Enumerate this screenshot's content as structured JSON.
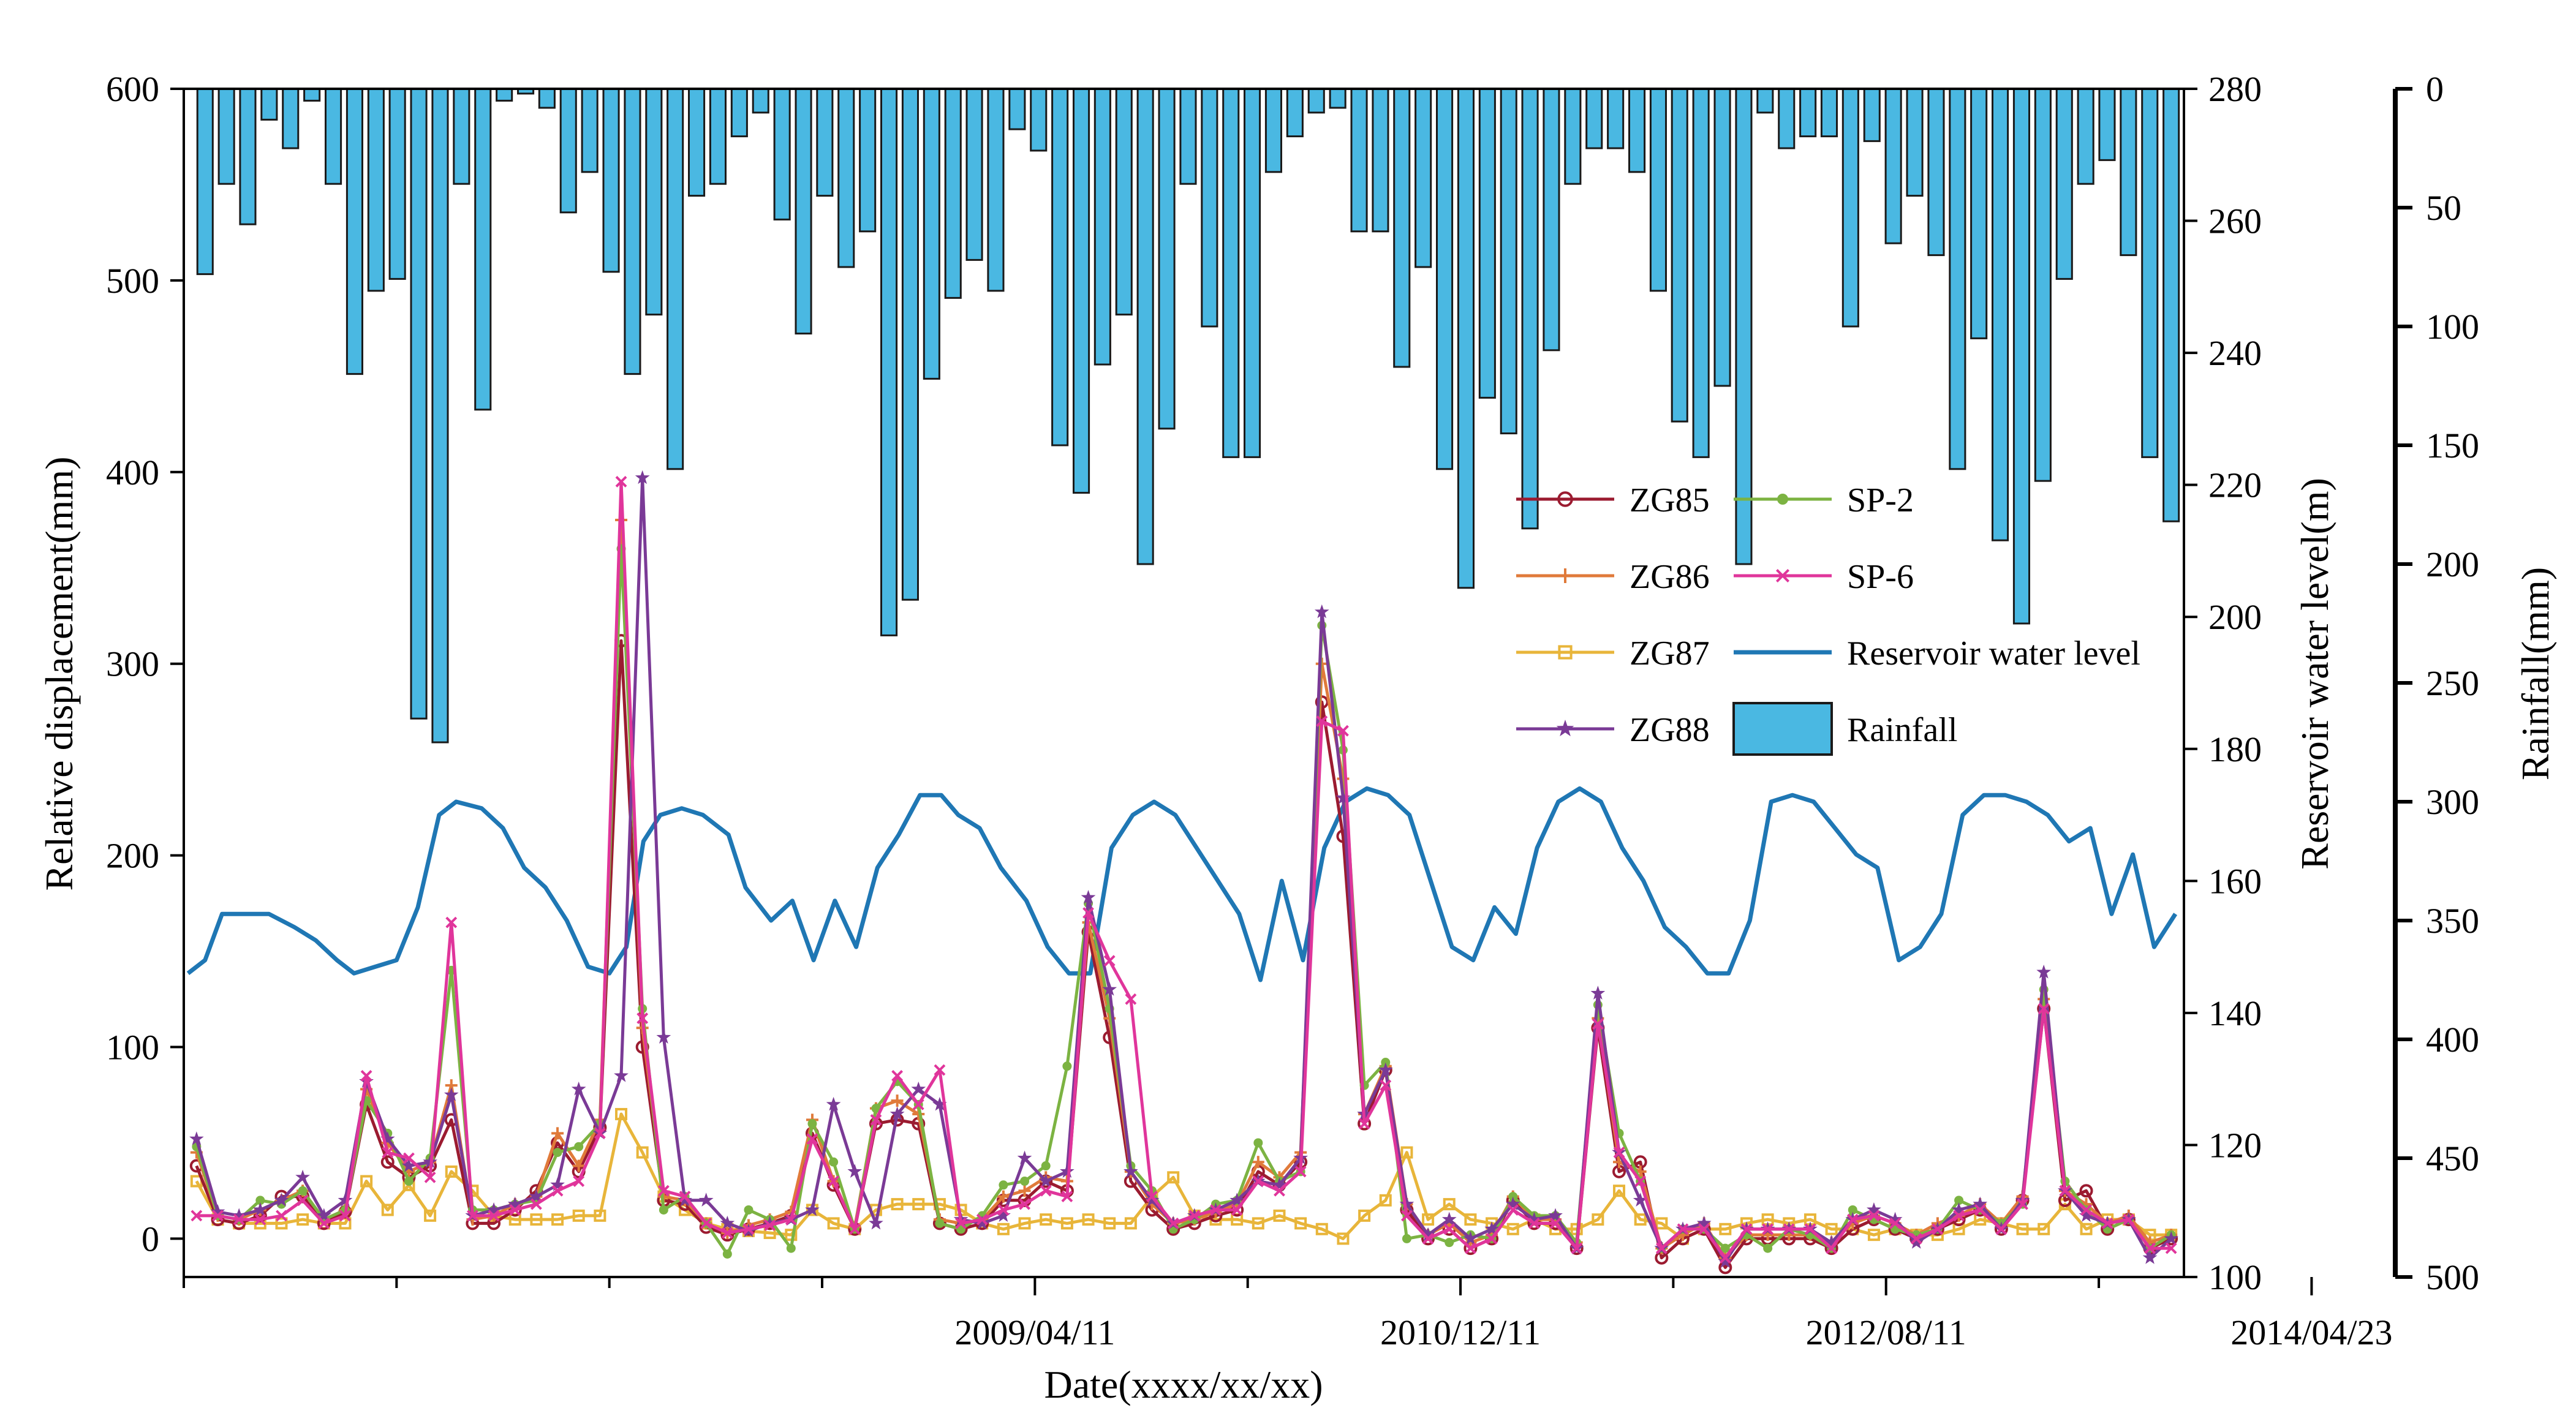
{
  "chart_data": {
    "type": "combo",
    "xlabel": "Date(xxxx/xx/xx)",
    "x_tick_labels": [
      "2009/04/11",
      "2010/12/11",
      "2012/08/11",
      "2014/04/23"
    ],
    "x_tick_positions": [
      1.0,
      2.0,
      3.0,
      4.0
    ],
    "x_range": [
      -1.0,
      3.7
    ],
    "left_axis": {
      "label": "Relative displacement(mm)",
      "ylim": [
        -20,
        600
      ],
      "ticks": [
        0,
        100,
        200,
        300,
        400,
        500,
        600
      ]
    },
    "right_axis": {
      "label": "Reservoir water level(m)",
      "ylim": [
        100,
        280
      ],
      "ticks": [
        100,
        120,
        140,
        160,
        180,
        200,
        220,
        240,
        260,
        280
      ]
    },
    "rain_axis": {
      "label": "Rainfall(mm)",
      "ylim": [
        0,
        500
      ],
      "inverted": true,
      "ticks": [
        0,
        50,
        100,
        150,
        200,
        250,
        300,
        350,
        400,
        450,
        500
      ]
    },
    "x_count": 94,
    "legend": [
      {
        "key": "ZG85",
        "label": "ZG85"
      },
      {
        "key": "SP-2",
        "label": "SP-2"
      },
      {
        "key": "ZG86",
        "label": "ZG86"
      },
      {
        "key": "SP-6",
        "label": "SP-6"
      },
      {
        "key": "ZG87",
        "label": "ZG87"
      },
      {
        "key": "reservoir",
        "label": "Reservoir water level"
      },
      {
        "key": "ZG88",
        "label": "ZG88"
      },
      {
        "key": "rainfall",
        "label": "Rainfall"
      }
    ],
    "rainfall": {
      "name": "Rainfall",
      "color": "#4ab8e2",
      "values": [
        78,
        40,
        57,
        13,
        25,
        5,
        40,
        120,
        85,
        80,
        265,
        275,
        40,
        135,
        5,
        2,
        8,
        52,
        35,
        77,
        120,
        95,
        160,
        45,
        40,
        20,
        10,
        55,
        103,
        45,
        75,
        60,
        230,
        215,
        122,
        88,
        72,
        85,
        17,
        26,
        150,
        170,
        116,
        95,
        200,
        143,
        40,
        100,
        155,
        155,
        35,
        20,
        10,
        8,
        60,
        60,
        117,
        75,
        160,
        210,
        130,
        145,
        185,
        110,
        40,
        25,
        25,
        35,
        85,
        140,
        155,
        125,
        200,
        10,
        25,
        20,
        20,
        100,
        22,
        65,
        45,
        70,
        160,
        105,
        190,
        225,
        165,
        80,
        40,
        30,
        70,
        155,
        182
      ],
      "first_x": -0.95,
      "last_x": 3.67
    },
    "reservoir": {
      "name": "Reservoir water level",
      "color": "#1f77b4",
      "x": [
        -0.99,
        -0.95,
        -0.91,
        -0.85,
        -0.8,
        -0.74,
        -0.69,
        -0.64,
        -0.6,
        -0.55,
        -0.5,
        -0.45,
        -0.4,
        -0.36,
        -0.3,
        -0.25,
        -0.2,
        -0.15,
        -0.1,
        -0.05,
        0.0,
        0.04,
        0.08,
        0.12,
        0.17,
        0.22,
        0.28,
        0.32,
        0.38,
        0.43,
        0.48,
        0.53,
        0.58,
        0.63,
        0.68,
        0.73,
        0.78,
        0.82,
        0.87,
        0.92,
        0.98,
        1.03,
        1.08,
        1.13,
        1.18,
        1.23,
        1.28,
        1.33,
        1.38,
        1.43,
        1.48,
        1.53,
        1.58,
        1.63,
        1.68,
        1.73,
        1.78,
        1.83,
        1.88,
        1.93,
        1.98,
        2.03,
        2.08,
        2.13,
        2.18,
        2.23,
        2.28,
        2.33,
        2.38,
        2.43,
        2.48,
        2.53,
        2.58,
        2.63,
        2.68,
        2.73,
        2.78,
        2.83,
        2.88,
        2.93,
        2.98,
        3.03,
        3.08,
        3.13,
        3.18,
        3.23,
        3.28,
        3.33,
        3.38,
        3.43,
        3.48,
        3.53,
        3.58,
        3.63,
        3.68
      ],
      "values": [
        146,
        148,
        155,
        155,
        155,
        153,
        151,
        148,
        146,
        147,
        148,
        156,
        170,
        172,
        171,
        168,
        162,
        159,
        154,
        147,
        146,
        150,
        166,
        170,
        171,
        170,
        167,
        159,
        154,
        157,
        148,
        157,
        150,
        162,
        167,
        173,
        173,
        170,
        168,
        162,
        157,
        150,
        146,
        146,
        165,
        170,
        172,
        170,
        165,
        160,
        155,
        145,
        160,
        148,
        165,
        172,
        174,
        173,
        170,
        160,
        150,
        148,
        156,
        152,
        165,
        172,
        174,
        172,
        165,
        160,
        153,
        150,
        146,
        146,
        154,
        172,
        173,
        172,
        168,
        164,
        162,
        148,
        150,
        155,
        170,
        173,
        173,
        172,
        170,
        166,
        168,
        155,
        164,
        150,
        155
      ]
    },
    "series": [
      {
        "name": "ZG85",
        "color": "#9b1b30",
        "marker": "circle",
        "values": [
          38,
          10,
          8,
          12,
          22,
          22,
          8,
          14,
          70,
          40,
          32,
          38,
          62,
          8,
          8,
          15,
          25,
          50,
          35,
          58,
          312,
          100,
          20,
          18,
          6,
          2,
          5,
          8,
          12,
          55,
          28,
          5,
          60,
          62,
          60,
          8,
          5,
          8,
          20,
          20,
          30,
          25,
          160,
          105,
          30,
          15,
          5,
          8,
          12,
          15,
          35,
          28,
          40,
          280,
          210,
          60,
          88,
          15,
          0,
          5,
          -5,
          0,
          20,
          8,
          8,
          -5,
          110,
          35,
          40,
          -10,
          0,
          5,
          -15,
          0,
          0,
          0,
          0,
          -5,
          5,
          10,
          5,
          0,
          5,
          10,
          15,
          5,
          20,
          120,
          20,
          25,
          5,
          10,
          -5,
          0
        ]
      },
      {
        "name": "ZG86",
        "color": "#e07a3a",
        "marker": "plus",
        "values": [
          45,
          12,
          10,
          15,
          20,
          25,
          10,
          15,
          78,
          50,
          35,
          40,
          80,
          10,
          12,
          18,
          22,
          55,
          38,
          62,
          375,
          110,
          22,
          20,
          8,
          3,
          7,
          10,
          14,
          62,
          30,
          6,
          68,
          72,
          65,
          10,
          8,
          10,
          22,
          25,
          32,
          30,
          165,
          115,
          35,
          18,
          8,
          10,
          14,
          18,
          40,
          32,
          45,
          300,
          240,
          65,
          90,
          18,
          2,
          8,
          -2,
          2,
          22,
          10,
          10,
          -2,
          115,
          40,
          35,
          -5,
          2,
          8,
          -10,
          2,
          2,
          2,
          2,
          -2,
          8,
          12,
          8,
          2,
          8,
          12,
          18,
          8,
          22,
          125,
          25,
          18,
          8,
          12,
          -2,
          2
        ]
      },
      {
        "name": "ZG87",
        "color": "#e8b53a",
        "marker": "square",
        "values": [
          30,
          10,
          8,
          8,
          8,
          10,
          8,
          8,
          30,
          15,
          28,
          12,
          35,
          25,
          12,
          10,
          10,
          10,
          12,
          12,
          65,
          45,
          22,
          15,
          8,
          5,
          4,
          3,
          2,
          15,
          8,
          5,
          15,
          18,
          18,
          18,
          15,
          8,
          5,
          8,
          10,
          8,
          10,
          8,
          8,
          22,
          32,
          12,
          10,
          10,
          8,
          12,
          8,
          5,
          0,
          12,
          20,
          45,
          10,
          18,
          10,
          8,
          5,
          10,
          5,
          5,
          10,
          25,
          10,
          8,
          0,
          5,
          5,
          8,
          10,
          8,
          10,
          5,
          5,
          2,
          5,
          2,
          2,
          5,
          10,
          8,
          5,
          5,
          18,
          5,
          10,
          10,
          2,
          2
        ]
      },
      {
        "name": "ZG88",
        "color": "#7a3a96",
        "marker": "star",
        "values": [
          52,
          14,
          12,
          15,
          20,
          32,
          12,
          20,
          82,
          52,
          38,
          40,
          75,
          12,
          15,
          18,
          22,
          28,
          78,
          55,
          85,
          397,
          105,
          20,
          20,
          8,
          4,
          8,
          10,
          15,
          70,
          35,
          8,
          65,
          78,
          70,
          10,
          8,
          12,
          42,
          30,
          35,
          178,
          130,
          35,
          20,
          8,
          12,
          15,
          20,
          30,
          28,
          42,
          327,
          230,
          65,
          88,
          18,
          2,
          10,
          0,
          5,
          18,
          10,
          12,
          -5,
          128,
          45,
          20,
          -5,
          5,
          8,
          -12,
          5,
          5,
          5,
          5,
          -2,
          10,
          15,
          10,
          -2,
          5,
          15,
          18,
          5,
          20,
          139,
          25,
          12,
          8,
          10,
          -10,
          0
        ]
      },
      {
        "name": "SP-2",
        "color": "#7cb342",
        "marker": "dot",
        "values": [
          48,
          12,
          10,
          20,
          18,
          25,
          10,
          15,
          72,
          55,
          30,
          42,
          140,
          15,
          15,
          18,
          20,
          45,
          48,
          60,
          360,
          120,
          15,
          22,
          8,
          -8,
          15,
          10,
          -5,
          60,
          40,
          5,
          68,
          82,
          70,
          8,
          5,
          12,
          28,
          30,
          38,
          90,
          175,
          120,
          38,
          25,
          5,
          10,
          18,
          20,
          50,
          30,
          35,
          320,
          255,
          80,
          92,
          0,
          2,
          -2,
          2,
          0,
          22,
          12,
          12,
          -2,
          122,
          55,
          30,
          -5,
          5,
          5,
          -5,
          2,
          -5,
          5,
          2,
          -5,
          15,
          10,
          5,
          2,
          5,
          20,
          15,
          8,
          18,
          130,
          30,
          15,
          5,
          10,
          -5,
          2
        ]
      },
      {
        "name": "SP-6",
        "color": "#e0359b",
        "marker": "x",
        "values": [
          12,
          12,
          10,
          10,
          12,
          20,
          8,
          12,
          85,
          45,
          42,
          32,
          165,
          12,
          12,
          15,
          18,
          25,
          30,
          55,
          395,
          115,
          25,
          22,
          8,
          3,
          5,
          7,
          10,
          52,
          30,
          5,
          62,
          85,
          70,
          88,
          8,
          10,
          15,
          18,
          25,
          22,
          170,
          145,
          125,
          22,
          8,
          12,
          15,
          15,
          30,
          25,
          35,
          270,
          265,
          60,
          80,
          12,
          0,
          5,
          -5,
          0,
          15,
          8,
          8,
          -5,
          112,
          45,
          30,
          -5,
          5,
          5,
          -10,
          5,
          5,
          5,
          5,
          -5,
          10,
          12,
          8,
          0,
          5,
          12,
          15,
          5,
          18,
          120,
          25,
          15,
          8,
          10,
          -5,
          -5
        ]
      }
    ]
  }
}
